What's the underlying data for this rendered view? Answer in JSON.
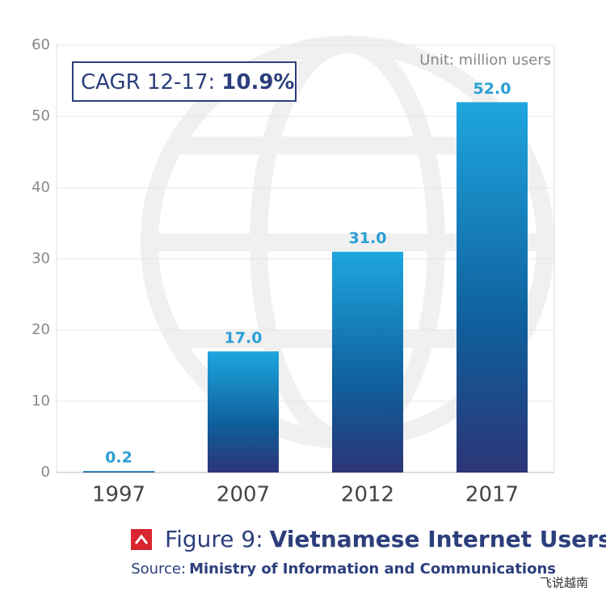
{
  "chart_data": {
    "type": "bar",
    "categories": [
      "1997",
      "2007",
      "2012",
      "2017"
    ],
    "values": [
      0.2,
      17,
      31,
      52
    ],
    "value_labels": [
      "0.2",
      "17.0",
      "31.0",
      "52.0"
    ],
    "color_top": "#1ea6df",
    "color_bottom": "#2c3577",
    "label_color": "#2a9fd6",
    "ylim": [
      0,
      60
    ],
    "yticks": [
      0,
      10,
      20,
      30,
      40,
      50,
      60
    ],
    "grid": true,
    "unit": "Unit: million users",
    "callout": {
      "label": "CAGR 12-17:",
      "value": "10.9%"
    },
    "figure_label": "Figure 9:",
    "title": "Vietnamese Internet Users",
    "source_label": "Source:",
    "source": "Ministry of Information and Communications"
  },
  "watermark": "飞说越南"
}
